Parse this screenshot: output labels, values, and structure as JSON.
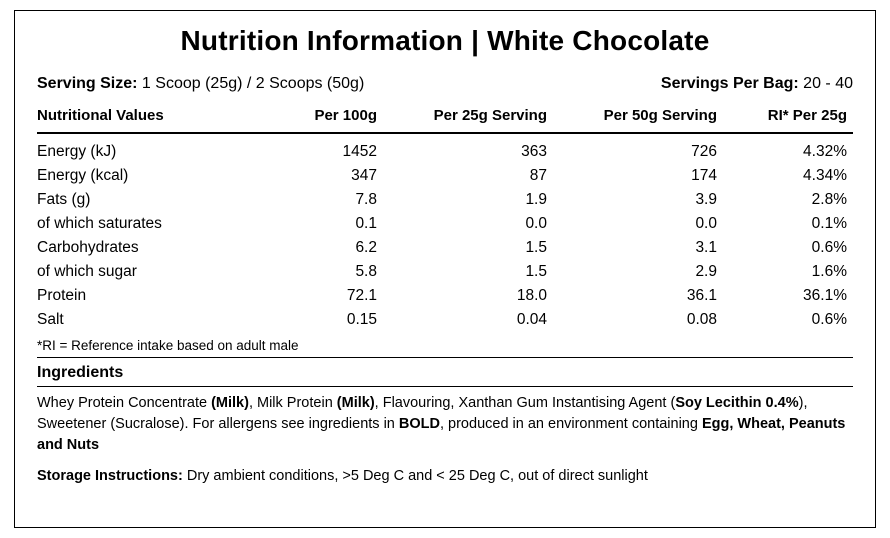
{
  "title_left": "Nutrition Information",
  "title_sep": "  |  ",
  "title_right": "White Chocolate",
  "serving_size_label": "Serving Size:",
  "serving_size_value": " 1 Scoop (25g) / 2 Scoops (50g)",
  "servings_per_bag_label": "Servings Per Bag:",
  "servings_per_bag_value": " 20 - 40",
  "columns": {
    "c1": "Nutritional Values",
    "c2": "Per 100g",
    "c3": "Per 25g Serving",
    "c4": "Per 50g Serving",
    "c5": "RI* Per 25g"
  },
  "rows": [
    {
      "c1": "Energy (kJ)",
      "c2": "1452",
      "c3": "363",
      "c4": "726",
      "c5": "4.32%"
    },
    {
      "c1": "Energy (kcal)",
      "c2": "347",
      "c3": "87",
      "c4": "174",
      "c5": "4.34%"
    },
    {
      "c1": "Fats (g)",
      "c2": "7.8",
      "c3": "1.9",
      "c4": "3.9",
      "c5": "2.8%"
    },
    {
      "c1": "of which saturates",
      "c2": "0.1",
      "c3": "0.0",
      "c4": "0.0",
      "c5": "0.1%"
    },
    {
      "c1": "Carbohydrates",
      "c2": "6.2",
      "c3": "1.5",
      "c4": "3.1",
      "c5": "0.6%"
    },
    {
      "c1": "of which sugar",
      "c2": "5.8",
      "c3": "1.5",
      "c4": "2.9",
      "c5": "1.6%"
    },
    {
      "c1": "Protein",
      "c2": "72.1",
      "c3": "18.0",
      "c4": "36.1",
      "c5": "36.1%"
    },
    {
      "c1": "Salt",
      "c2": "0.15",
      "c3": "0.04",
      "c4": "0.08",
      "c5": "0.6%"
    }
  ],
  "ri_footnote": "*RI = Reference intake based on adult male",
  "ingredients_label": "Ingredients",
  "ingredients_html_parts": [
    "Whey Protein Concentrate ",
    "<b>(Milk)</b>",
    ", Milk Protein ",
    "<b>(Milk)</b>",
    ", Flavouring, Xanthan Gum Instantising Agent (",
    "<b>Soy Lecithin 0.4%</b>",
    "), Sweetener (Sucralose). For allergens see ingredients in ",
    "<b>BOLD</b>",
    ", produced in an environment containing ",
    "<b>Egg, Wheat, Peanuts and Nuts</b>"
  ],
  "storage_label": "Storage Instructions:",
  "storage_value": " Dry ambient conditions, >5 Deg C and < 25 Deg C,  out of direct sunlight",
  "colors": {
    "text": "#000000",
    "background": "#ffffff",
    "rule": "#000000"
  }
}
